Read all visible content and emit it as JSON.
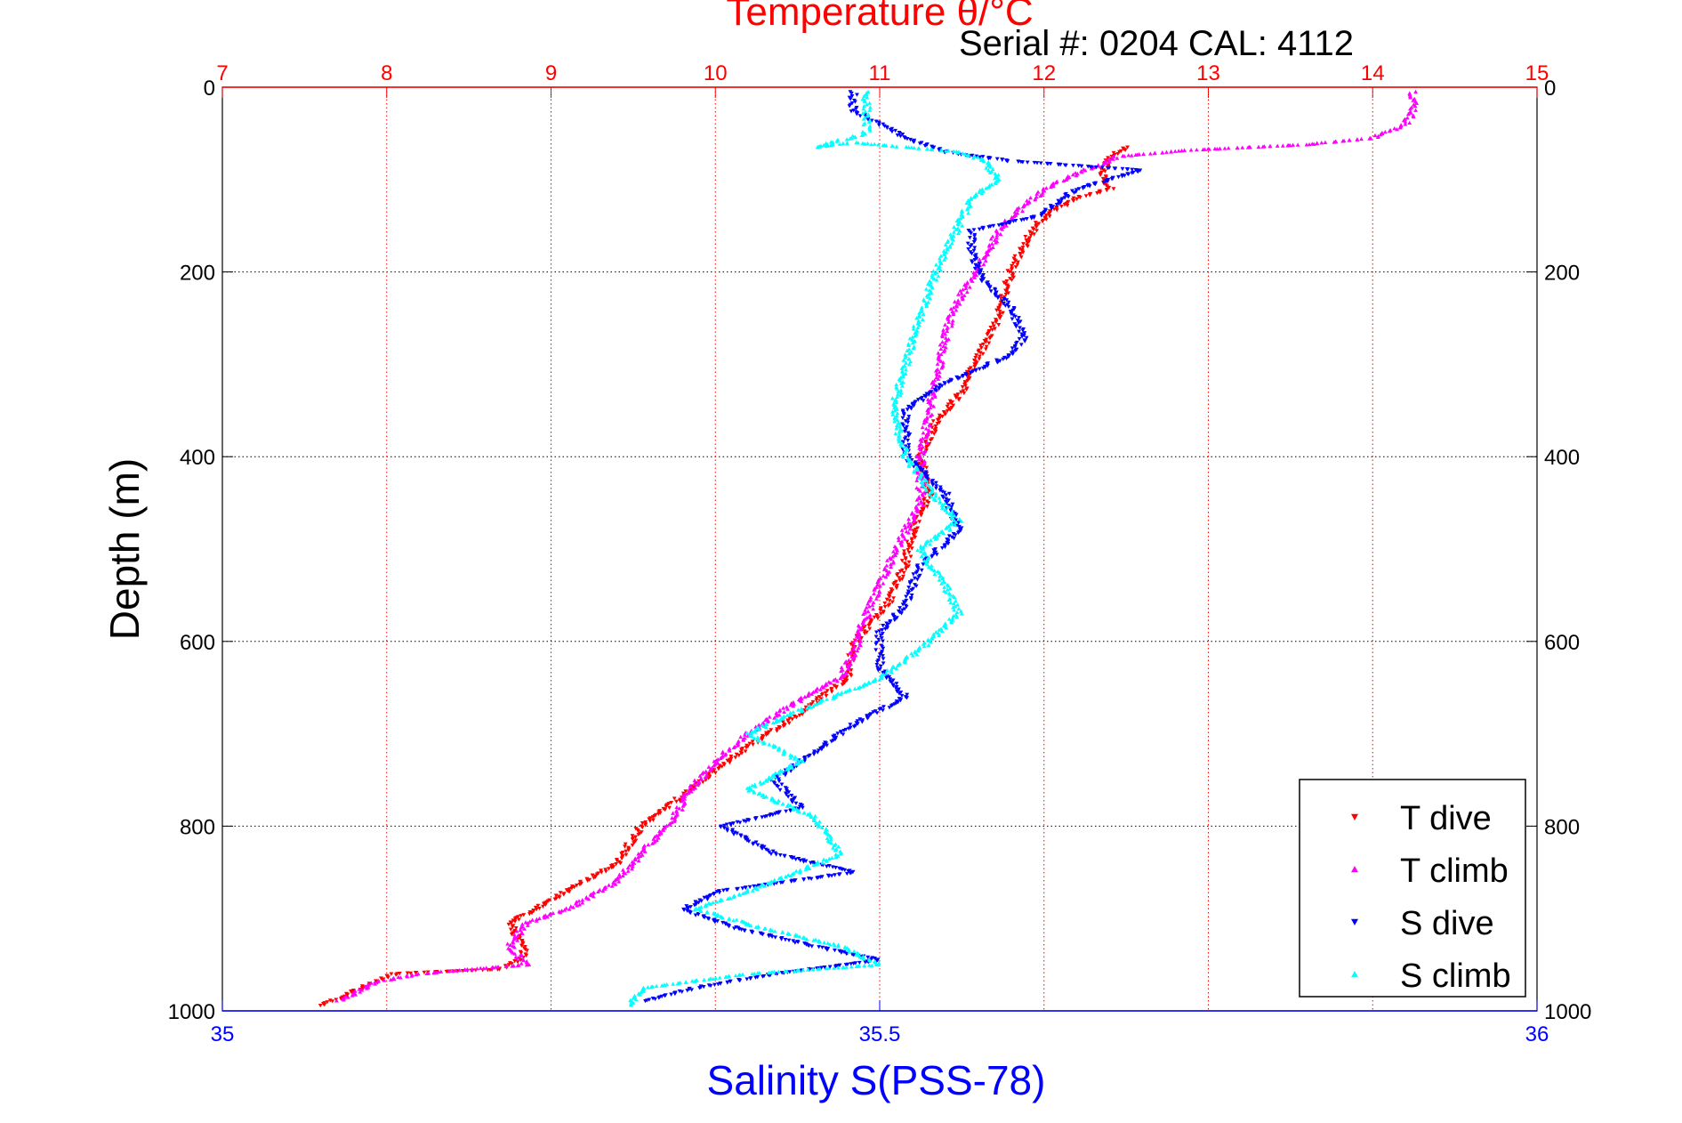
{
  "chart_data": {
    "type": "scatter",
    "title": "Temperature θ/°C",
    "subtitle": "Serial #: 0204  CAL: 4112",
    "ylabel": "Depth (m)",
    "xlabel": "Salinity S(PSS-78)",
    "ylim": [
      0,
      1000
    ],
    "y_reversed": true,
    "y_ticks": [
      "0",
      "200",
      "400",
      "600",
      "800",
      "1000"
    ],
    "temperature_axis": {
      "range": [
        7,
        15
      ],
      "ticks": [
        "7",
        "8",
        "9",
        "10",
        "11",
        "12",
        "13",
        "14",
        "15"
      ],
      "position": "top"
    },
    "salinity_axis": {
      "range": [
        35,
        36
      ],
      "ticks": [
        "35",
        "35.5",
        "36"
      ],
      "position": "bottom"
    },
    "grid": true,
    "legend_position": "bottom-right",
    "series": [
      {
        "name": "T dive",
        "axis": "temperature",
        "color": "#ff0000",
        "marker": "triangle-down",
        "points": [
          [
            12.5,
            65
          ],
          [
            12.4,
            75
          ],
          [
            12.35,
            95
          ],
          [
            12.4,
            110
          ],
          [
            12.2,
            120
          ],
          [
            12.05,
            135
          ],
          [
            11.95,
            150
          ],
          [
            11.85,
            180
          ],
          [
            11.8,
            200
          ],
          [
            11.75,
            230
          ],
          [
            11.7,
            260
          ],
          [
            11.6,
            290
          ],
          [
            11.5,
            330
          ],
          [
            11.35,
            360
          ],
          [
            11.25,
            400
          ],
          [
            11.3,
            440
          ],
          [
            11.2,
            480
          ],
          [
            11.15,
            520
          ],
          [
            11.05,
            560
          ],
          [
            10.85,
            600
          ],
          [
            10.8,
            640
          ],
          [
            10.5,
            680
          ],
          [
            10.15,
            720
          ],
          [
            9.85,
            760
          ],
          [
            9.55,
            800
          ],
          [
            9.4,
            840
          ],
          [
            9.0,
            880
          ],
          [
            8.75,
            905
          ],
          [
            8.85,
            940
          ],
          [
            8.7,
            955
          ],
          [
            8.25,
            958
          ],
          [
            8.05,
            960
          ],
          [
            7.85,
            975
          ],
          [
            7.6,
            995
          ]
        ]
      },
      {
        "name": "T climb",
        "axis": "temperature",
        "color": "#ff00ff",
        "marker": "triangle-up",
        "points": [
          [
            14.25,
            5
          ],
          [
            14.25,
            25
          ],
          [
            14.2,
            40
          ],
          [
            14.0,
            55
          ],
          [
            13.6,
            62
          ],
          [
            12.9,
            68
          ],
          [
            12.45,
            75
          ],
          [
            12.25,
            90
          ],
          [
            12.05,
            105
          ],
          [
            11.9,
            125
          ],
          [
            11.75,
            150
          ],
          [
            11.65,
            180
          ],
          [
            11.55,
            210
          ],
          [
            11.45,
            240
          ],
          [
            11.4,
            270
          ],
          [
            11.35,
            310
          ],
          [
            11.3,
            350
          ],
          [
            11.25,
            400
          ],
          [
            11.25,
            450
          ],
          [
            11.1,
            500
          ],
          [
            11.0,
            540
          ],
          [
            10.9,
            580
          ],
          [
            10.85,
            610
          ],
          [
            10.75,
            640
          ],
          [
            10.45,
            670
          ],
          [
            10.2,
            700
          ],
          [
            10.0,
            730
          ],
          [
            9.85,
            760
          ],
          [
            9.75,
            790
          ],
          [
            9.6,
            820
          ],
          [
            9.4,
            860
          ],
          [
            9.1,
            890
          ],
          [
            8.85,
            905
          ],
          [
            8.75,
            930
          ],
          [
            8.85,
            950
          ],
          [
            8.5,
            955
          ],
          [
            8.2,
            960
          ],
          [
            7.95,
            968
          ],
          [
            7.7,
            990
          ]
        ]
      },
      {
        "name": "S dive",
        "axis": "salinity",
        "color": "#0000ff",
        "marker": "triangle-down",
        "points": [
          [
            35.48,
            5
          ],
          [
            35.48,
            25
          ],
          [
            35.5,
            40
          ],
          [
            35.52,
            55
          ],
          [
            35.55,
            70
          ],
          [
            35.6,
            80
          ],
          [
            35.65,
            85
          ],
          [
            35.7,
            90
          ],
          [
            35.65,
            110
          ],
          [
            35.62,
            140
          ],
          [
            35.57,
            155
          ],
          [
            35.57,
            180
          ],
          [
            35.58,
            210
          ],
          [
            35.6,
            240
          ],
          [
            35.61,
            270
          ],
          [
            35.6,
            290
          ],
          [
            35.55,
            320
          ],
          [
            35.52,
            350
          ],
          [
            35.52,
            400
          ],
          [
            35.55,
            440
          ],
          [
            35.56,
            480
          ],
          [
            35.53,
            520
          ],
          [
            35.52,
            560
          ],
          [
            35.5,
            590
          ],
          [
            35.5,
            630
          ],
          [
            35.52,
            660
          ],
          [
            35.48,
            690
          ],
          [
            35.45,
            720
          ],
          [
            35.42,
            750
          ],
          [
            35.44,
            780
          ],
          [
            35.38,
            800
          ],
          [
            35.42,
            830
          ],
          [
            35.48,
            850
          ],
          [
            35.38,
            870
          ],
          [
            35.35,
            890
          ],
          [
            35.39,
            910
          ],
          [
            35.45,
            930
          ],
          [
            35.5,
            945
          ],
          [
            35.42,
            960
          ],
          [
            35.36,
            975
          ],
          [
            35.32,
            990
          ]
        ]
      },
      {
        "name": "S climb",
        "axis": "salinity",
        "color": "#00ffff",
        "marker": "triangle-up",
        "points": [
          [
            35.49,
            5
          ],
          [
            35.49,
            25
          ],
          [
            35.49,
            50
          ],
          [
            35.45,
            65
          ],
          [
            35.48,
            60
          ],
          [
            35.52,
            65
          ],
          [
            35.56,
            70
          ],
          [
            35.58,
            80
          ],
          [
            35.59,
            100
          ],
          [
            35.57,
            120
          ],
          [
            35.56,
            150
          ],
          [
            35.55,
            180
          ],
          [
            35.54,
            210
          ],
          [
            35.53,
            250
          ],
          [
            35.52,
            300
          ],
          [
            35.51,
            350
          ],
          [
            35.52,
            400
          ],
          [
            35.54,
            440
          ],
          [
            35.56,
            470
          ],
          [
            35.53,
            500
          ],
          [
            35.55,
            540
          ],
          [
            35.56,
            570
          ],
          [
            35.53,
            610
          ],
          [
            35.5,
            640
          ],
          [
            35.43,
            680
          ],
          [
            35.4,
            700
          ],
          [
            35.44,
            730
          ],
          [
            35.4,
            760
          ],
          [
            35.45,
            790
          ],
          [
            35.47,
            830
          ],
          [
            35.42,
            860
          ],
          [
            35.36,
            890
          ],
          [
            35.41,
            910
          ],
          [
            35.47,
            930
          ],
          [
            35.5,
            950
          ],
          [
            35.4,
            960
          ],
          [
            35.32,
            975
          ],
          [
            35.31,
            995
          ]
        ]
      }
    ]
  }
}
